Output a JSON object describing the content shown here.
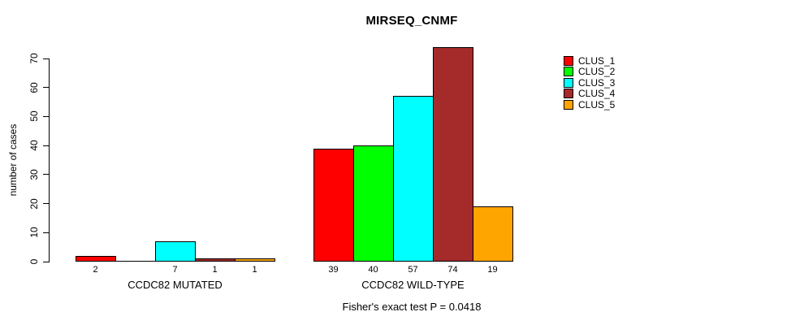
{
  "chart_data": {
    "type": "bar",
    "title": "MIRSEQ_CNMF",
    "ylabel": "number of cases",
    "ylim": [
      0,
      70
    ],
    "yticks": [
      0,
      10,
      20,
      30,
      40,
      50,
      60,
      70
    ],
    "grid": false,
    "legend_position": "right",
    "bar_value_labels": true,
    "categories": [
      "CCDC82 MUTATED",
      "CCDC82 WILD-TYPE"
    ],
    "series": [
      {
        "name": "CLUS_1",
        "color": "#FF0000",
        "values": [
          2,
          39
        ]
      },
      {
        "name": "CLUS_2",
        "color": "#00FF00",
        "values": [
          0,
          40
        ]
      },
      {
        "name": "CLUS_3",
        "color": "#00FFFF",
        "values": [
          7,
          57
        ]
      },
      {
        "name": "CLUS_4",
        "color": "#A52A2A",
        "values": [
          1,
          74
        ]
      },
      {
        "name": "CLUS_5",
        "color": "#FFA500",
        "values": [
          1,
          19
        ]
      }
    ],
    "annotation": "Fisher's exact test P = 0.0418"
  }
}
